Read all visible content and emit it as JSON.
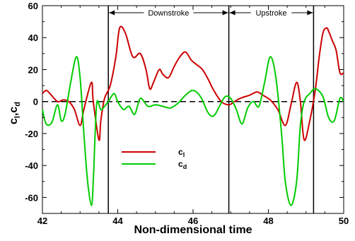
{
  "chart_data": {
    "type": "line",
    "xlabel": "Non-dimensional time",
    "ylabel": "c",
    "ylabel_sub_1": "l",
    "ylabel_sep": ",c",
    "ylabel_sub_2": "d",
    "xlim": [
      42,
      50
    ],
    "ylim": [
      -70,
      60
    ],
    "x_ticks": [
      42,
      44,
      46,
      48,
      50
    ],
    "y_ticks": [
      -60,
      -40,
      -20,
      0,
      20,
      40,
      60
    ],
    "grid": false,
    "legend_position": "lower-middle",
    "reference_line": {
      "y": 0,
      "style": "dashed"
    },
    "vertical_lines": [
      43.75,
      46.95,
      49.2
    ],
    "annotations": [
      {
        "text": "Downstroke",
        "x_start": 43.75,
        "x_end": 46.95
      },
      {
        "text": "Upstroke",
        "x_start": 46.95,
        "x_end": 49.2
      }
    ],
    "series": [
      {
        "name": "c",
        "name_sub": "l",
        "color": "#cc0000",
        "x": [
          42.0,
          42.1,
          42.2,
          42.4,
          42.55,
          42.7,
          42.85,
          43.0,
          43.1,
          43.3,
          43.35,
          43.5,
          43.55,
          43.65,
          43.8,
          43.95,
          44.05,
          44.2,
          44.4,
          44.6,
          44.75,
          44.85,
          44.95,
          45.1,
          45.2,
          45.35,
          45.5,
          45.65,
          45.8,
          45.95,
          46.1,
          46.25,
          46.4,
          46.55,
          46.75,
          46.95,
          47.1,
          47.25,
          47.5,
          47.7,
          47.85,
          48.05,
          48.25,
          48.45,
          48.6,
          48.75,
          48.85,
          48.95,
          49.1,
          49.25,
          49.35,
          49.45,
          49.55,
          49.6,
          49.7,
          49.8,
          49.9,
          50.0
        ],
        "y": [
          5,
          7,
          5,
          0,
          1,
          0,
          -5,
          -15,
          -5,
          12,
          0,
          -24,
          -12,
          2,
          10,
          28,
          46,
          43,
          28,
          30,
          20,
          8,
          12,
          20,
          17,
          15,
          22,
          28,
          31,
          26,
          23,
          20,
          14,
          7,
          0,
          -2,
          0,
          2,
          4,
          6,
          4,
          1,
          -5,
          -15,
          -2,
          12,
          0,
          -24,
          -12,
          8,
          28,
          43,
          46,
          44,
          38,
          32,
          18,
          18
        ]
      },
      {
        "name": "c",
        "name_sub": "d",
        "color": "#00cc00",
        "x": [
          42.0,
          42.1,
          42.25,
          42.4,
          42.5,
          42.6,
          42.75,
          42.9,
          43.0,
          43.1,
          43.2,
          43.3,
          43.35,
          43.4,
          43.45,
          43.55,
          43.65,
          43.75,
          43.9,
          44.0,
          44.15,
          44.3,
          44.45,
          44.6,
          44.8,
          45.0,
          45.2,
          45.4,
          45.6,
          45.8,
          46.0,
          46.2,
          46.4,
          46.55,
          46.7,
          46.85,
          47.0,
          47.15,
          47.3,
          47.45,
          47.6,
          47.75,
          47.9,
          48.05,
          48.2,
          48.35,
          48.45,
          48.6,
          48.75,
          48.85,
          48.95,
          49.1,
          49.25,
          49.45,
          49.6,
          49.75,
          49.9,
          50.0
        ],
        "y": [
          -5,
          -14,
          -13,
          -2,
          -12,
          -8,
          12,
          28,
          15,
          -20,
          -50,
          -65,
          -50,
          -20,
          0,
          -5,
          -3,
          0,
          5,
          0,
          -5,
          -3,
          -8,
          2,
          -3,
          -2,
          -3,
          -4,
          -1,
          4,
          7,
          3,
          -7,
          -9,
          -3,
          3,
          2,
          -5,
          -14,
          -4,
          0,
          -3,
          12,
          28,
          15,
          -20,
          -50,
          -65,
          -50,
          -15,
          0,
          5,
          8,
          3,
          -10,
          -12,
          2,
          0
        ]
      }
    ]
  }
}
